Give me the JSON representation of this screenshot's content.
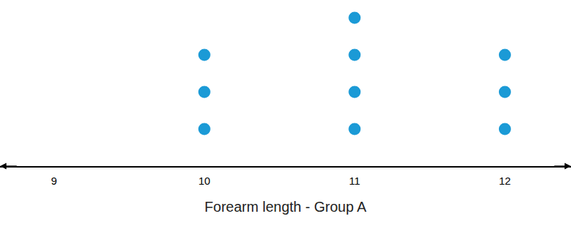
{
  "chart_data": {
    "type": "dot",
    "x_label": "Forearm length - Group A",
    "values": [
      10,
      10,
      10,
      11,
      11,
      11,
      11,
      12,
      12,
      12
    ],
    "color": "#1b9ad6",
    "marker": "circle",
    "xlim": [
      8.64,
      12.44
    ],
    "xticks": [
      9,
      10,
      11,
      12
    ],
    "grid": false,
    "tick_labels": "x"
  }
}
